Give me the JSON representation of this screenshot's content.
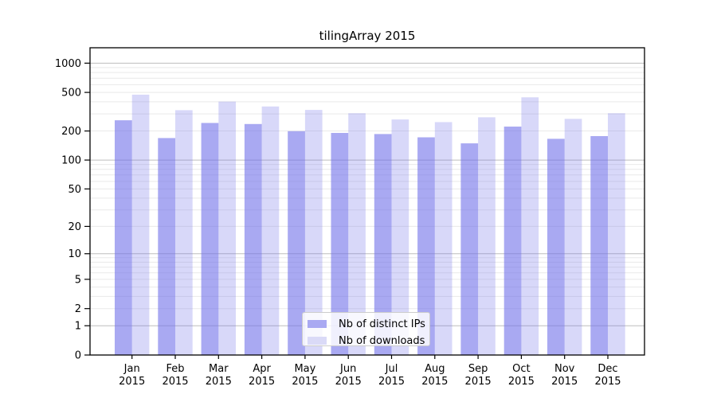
{
  "chart_data": {
    "type": "bar",
    "title": "tilingArray 2015",
    "categories": [
      "Jan",
      "Feb",
      "Mar",
      "Apr",
      "May",
      "Jun",
      "Jul",
      "Aug",
      "Sep",
      "Oct",
      "Nov",
      "Dec"
    ],
    "category_year": "2015",
    "series": [
      {
        "name": "Nb of distinct IPs",
        "values": [
          258,
          169,
          242,
          236,
          199,
          191,
          186,
          172,
          149,
          222,
          166,
          177
        ]
      },
      {
        "name": "Nb of downloads",
        "values": [
          474,
          328,
          402,
          358,
          330,
          305,
          263,
          247,
          277,
          445,
          267,
          305
        ]
      }
    ],
    "y_ticks": [
      0,
      1,
      2,
      5,
      10,
      20,
      50,
      100,
      200,
      500,
      1000
    ],
    "ylim": [
      0,
      1450
    ],
    "y_scale": "log10(1+x)",
    "xlabel": "",
    "ylabel": "",
    "grid": "horizontal major+minor log gridlines",
    "legend_position": "inside bottom-center",
    "colors": {
      "ips_fill": "rgba(111,111,233,0.60)",
      "downloads_fill": "rgba(111,111,233,0.27)",
      "ips_swatch": "#a9a9f2",
      "downloads_swatch": "#dadaf7",
      "major_grid": "#bdbdbd",
      "minor_grid": "#e9e9e9",
      "axis": "#000000"
    }
  },
  "legend": {
    "items": [
      {
        "label": "Nb of distinct IPs",
        "swatch_color": "#a9a9f2"
      },
      {
        "label": "Nb of downloads",
        "swatch_color": "#dadaf7"
      }
    ]
  }
}
